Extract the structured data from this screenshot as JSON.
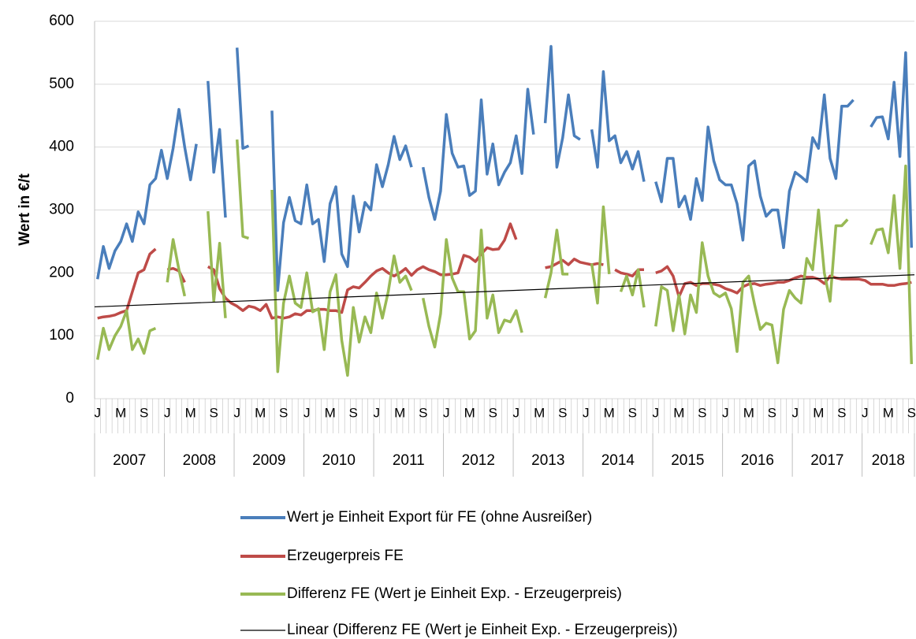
{
  "chart_data": {
    "type": "line",
    "y_label": "Wert in €/t",
    "ylim": [
      0,
      600
    ],
    "yticks": [
      0,
      100,
      200,
      300,
      400,
      500,
      600
    ],
    "grid": true,
    "categories": [
      "J",
      null,
      null,
      null,
      "M",
      null,
      null,
      null,
      "S",
      null,
      null,
      null,
      "J",
      null,
      null,
      null,
      "M",
      null,
      null,
      null,
      "S",
      null,
      null,
      null,
      "J",
      null,
      null,
      null,
      "M",
      null,
      null,
      null,
      "S",
      null,
      null,
      null,
      "J",
      null,
      null,
      null,
      "M",
      null,
      null,
      null,
      "S",
      null,
      null,
      null,
      "J",
      null,
      null,
      null,
      "M",
      null,
      null,
      null,
      "S",
      null,
      null,
      null,
      "J",
      null,
      null,
      null,
      "M",
      null,
      null,
      null,
      "S",
      null,
      null,
      null,
      "J",
      null,
      null,
      null,
      "M",
      null,
      null,
      null,
      "S",
      null,
      null,
      null,
      "J",
      null,
      null,
      null,
      "M",
      null,
      null,
      null,
      "S",
      null,
      null,
      null,
      "J",
      null,
      null,
      null,
      "M",
      null,
      null,
      null,
      "S",
      null,
      null,
      null,
      "J",
      null,
      null,
      null,
      "M",
      null,
      null,
      null,
      "S",
      null,
      null,
      null,
      "J",
      null,
      null,
      null,
      "M",
      null,
      null,
      null,
      "S",
      null,
      null,
      null,
      "J",
      null,
      null,
      null,
      "M",
      null,
      null,
      null,
      "S"
    ],
    "years": [
      "2007",
      "2008",
      "2009",
      "2010",
      "2011",
      "2012",
      "2013",
      "2014",
      "2015",
      "2016",
      "2017",
      "2018"
    ],
    "series": [
      {
        "name": "Wert je Einheit Export für FE (ohne Ausreißer)",
        "color": "#4a7ebb",
        "values": [
          190,
          242,
          207,
          235,
          250,
          278,
          250,
          297,
          278,
          340,
          350,
          395,
          350,
          398,
          460,
          400,
          348,
          405,
          null,
          505,
          360,
          428,
          288,
          null,
          558,
          398,
          402,
          null,
          null,
          null,
          458,
          172,
          280,
          320,
          283,
          278,
          340,
          278,
          285,
          218,
          310,
          337,
          230,
          210,
          322,
          265,
          312,
          300,
          372,
          337,
          372,
          417,
          380,
          402,
          368,
          null,
          368,
          320,
          285,
          330,
          452,
          390,
          368,
          370,
          323,
          330,
          475,
          357,
          405,
          340,
          360,
          375,
          418,
          358,
          492,
          420,
          null,
          438,
          560,
          368,
          415,
          483,
          418,
          412,
          null,
          428,
          368,
          520,
          410,
          418,
          375,
          393,
          365,
          393,
          345,
          null,
          345,
          313,
          382,
          382,
          305,
          322,
          285,
          350,
          315,
          432,
          378,
          348,
          340,
          340,
          310,
          252,
          370,
          378,
          322,
          290,
          300,
          300,
          240,
          330,
          360,
          353,
          345,
          415,
          398,
          483,
          382,
          350,
          465,
          465,
          475,
          null,
          null,
          432,
          447,
          448,
          413,
          503,
          385,
          550,
          240
        ]
      },
      {
        "name": "Erzeugerpreis FE",
        "color": "#be4b48",
        "values": [
          128,
          130,
          131,
          133,
          137,
          140,
          170,
          200,
          205,
          230,
          238,
          null,
          205,
          207,
          203,
          185,
          null,
          null,
          null,
          210,
          205,
          175,
          160,
          152,
          147,
          140,
          147,
          145,
          140,
          150,
          128,
          130,
          128,
          130,
          135,
          133,
          140,
          140,
          142,
          142,
          140,
          140,
          137,
          173,
          178,
          176,
          185,
          195,
          203,
          207,
          200,
          195,
          200,
          207,
          196,
          205,
          210,
          205,
          202,
          197,
          197,
          198,
          200,
          228,
          225,
          218,
          230,
          240,
          237,
          238,
          252,
          278,
          253,
          null,
          null,
          null,
          null,
          208,
          210,
          215,
          220,
          213,
          222,
          217,
          215,
          213,
          215,
          213,
          null,
          205,
          200,
          198,
          195,
          205,
          205,
          null,
          200,
          203,
          210,
          195,
          162,
          183,
          185,
          180,
          183,
          183,
          182,
          180,
          175,
          172,
          168,
          178,
          182,
          183,
          180,
          182,
          183,
          185,
          185,
          188,
          192,
          195,
          193,
          193,
          190,
          183,
          195,
          192,
          190,
          190,
          190,
          190,
          188,
          182,
          182,
          182,
          180,
          180,
          182,
          183,
          185
        ]
      },
      {
        "name": "Differenz FE (Wert je Einheit Exp. - Erzeugerpreis)",
        "color": "#98b954",
        "values": [
          62,
          112,
          78,
          100,
          115,
          140,
          78,
          95,
          72,
          108,
          112,
          null,
          185,
          253,
          205,
          163,
          null,
          null,
          null,
          298,
          155,
          247,
          128,
          null,
          412,
          258,
          255,
          null,
          null,
          null,
          332,
          43,
          152,
          195,
          152,
          145,
          200,
          138,
          143,
          78,
          170,
          197,
          93,
          37,
          145,
          90,
          130,
          105,
          168,
          128,
          170,
          227,
          185,
          195,
          172,
          null,
          160,
          115,
          82,
          135,
          253,
          192,
          170,
          170,
          95,
          108,
          268,
          128,
          165,
          105,
          125,
          122,
          140,
          105,
          null,
          null,
          null,
          160,
          200,
          268,
          198,
          198,
          null,
          null,
          null,
          215,
          152,
          305,
          198,
          null,
          170,
          195,
          165,
          205,
          145,
          null,
          115,
          178,
          172,
          108,
          165,
          103,
          165,
          137,
          248,
          195,
          168,
          162,
          168,
          143,
          75,
          185,
          195,
          150,
          110,
          120,
          117,
          57,
          142,
          172,
          160,
          152,
          223,
          205,
          300,
          200,
          155,
          275,
          275,
          285,
          null,
          null,
          null,
          245,
          268,
          270,
          232,
          323,
          207,
          370,
          55
        ]
      }
    ],
    "trendline": {
      "name": "Linear (Differenz FE (Wert je Einheit Exp. - Erzeugerpreis))",
      "color": "#000000",
      "start": 146,
      "end": 197
    }
  }
}
